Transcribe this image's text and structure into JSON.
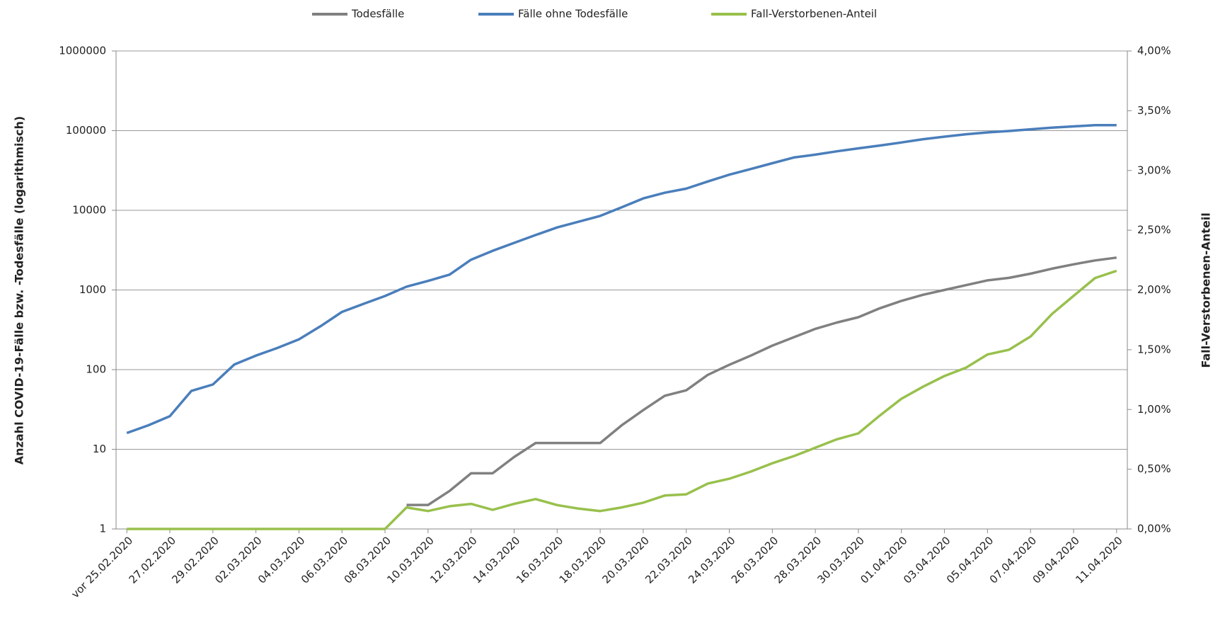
{
  "chart_data": {
    "type": "line",
    "categories": [
      "vor 25.02.2020",
      null,
      "27.02.2020",
      null,
      "29.02.2020",
      null,
      "02.03.2020",
      null,
      "04.03.2020",
      null,
      "06.03.2020",
      null,
      "08.03.2020",
      null,
      "10.03.2020",
      null,
      "12.03.2020",
      null,
      "14.03.2020",
      null,
      "16.03.2020",
      null,
      "18.03.2020",
      null,
      "20.03.2020",
      null,
      "22.03.2020",
      null,
      "24.03.2020",
      null,
      "26.03.2020",
      null,
      "28.03.2020",
      null,
      "30.03.2020",
      null,
      "01.04.2020",
      null,
      "03.04.2020",
      null,
      "05.04.2020",
      null,
      "07.04.2020",
      null,
      "09.04.2020",
      null,
      "11.04.2020"
    ],
    "series": [
      {
        "name": "Todesfälle",
        "color": "#808080",
        "values": [
          null,
          null,
          null,
          null,
          null,
          null,
          null,
          null,
          null,
          null,
          null,
          null,
          null,
          2,
          2,
          3,
          5,
          5,
          8,
          12,
          12,
          12,
          12,
          20,
          31,
          47,
          55,
          86,
          115,
          150,
          200,
          255,
          325,
          390,
          455,
          590,
          730,
          870,
          1000,
          1150,
          1320,
          1420,
          1600,
          1850,
          2100,
          2350,
          2550
        ]
      },
      {
        "name": "Fälle ohne Todesfälle",
        "color": "#4a7ebb",
        "values": [
          16,
          20,
          26,
          54,
          65,
          116,
          150,
          187,
          240,
          350,
          530,
          670,
          840,
          1100,
          1300,
          1560,
          2400,
          3100,
          3900,
          4900,
          6100,
          7200,
          8500,
          10900,
          14100,
          16600,
          18700,
          23000,
          28000,
          33000,
          39000,
          46000,
          50000,
          55000,
          60000,
          65000,
          71000,
          78000,
          84000,
          90000,
          95000,
          99000,
          104000,
          109000,
          113000,
          117000,
          117000
        ]
      },
      {
        "name": "Fall-Verstorbenen-Anteil",
        "color": "#98c04c",
        "axis": "y2",
        "values": [
          0,
          0,
          0,
          0,
          0,
          0,
          0,
          0,
          0,
          0,
          0,
          0,
          0,
          0.18,
          0.15,
          0.19,
          0.21,
          0.16,
          0.21,
          0.25,
          0.2,
          0.17,
          0.15,
          0.18,
          0.22,
          0.28,
          0.29,
          0.38,
          0.42,
          0.48,
          0.55,
          0.61,
          0.68,
          0.75,
          0.8,
          0.95,
          1.09,
          1.19,
          1.28,
          1.35,
          1.46,
          1.5,
          1.61,
          1.8,
          1.95,
          2.1,
          2.16
        ]
      }
    ],
    "y_label": "Anzahl COVID-19-Fälle bzw. -Todesfälle (logarithmisch)",
    "y2_label": "Fall-Verstorbenen-Anteil",
    "ylim": [
      1,
      1000000
    ],
    "yticks": [
      1,
      10,
      100,
      1000,
      10000,
      100000,
      1000000
    ],
    "log_y": true,
    "y2lim": [
      0,
      4
    ],
    "y2ticks": [
      {
        "value": 0,
        "label": "0,00%"
      },
      {
        "value": 0.5,
        "label": "0,50%"
      },
      {
        "value": 1,
        "label": "1,00%"
      },
      {
        "value": 1.5,
        "label": "1,50%"
      },
      {
        "value": 2,
        "label": "2,00%"
      },
      {
        "value": 2.5,
        "label": "2,50%"
      },
      {
        "value": 3,
        "label": "3,00%"
      },
      {
        "value": 3.5,
        "label": "3,50%"
      },
      {
        "value": 4,
        "label": "4,00%"
      }
    ],
    "grid": true,
    "legend": "top"
  }
}
